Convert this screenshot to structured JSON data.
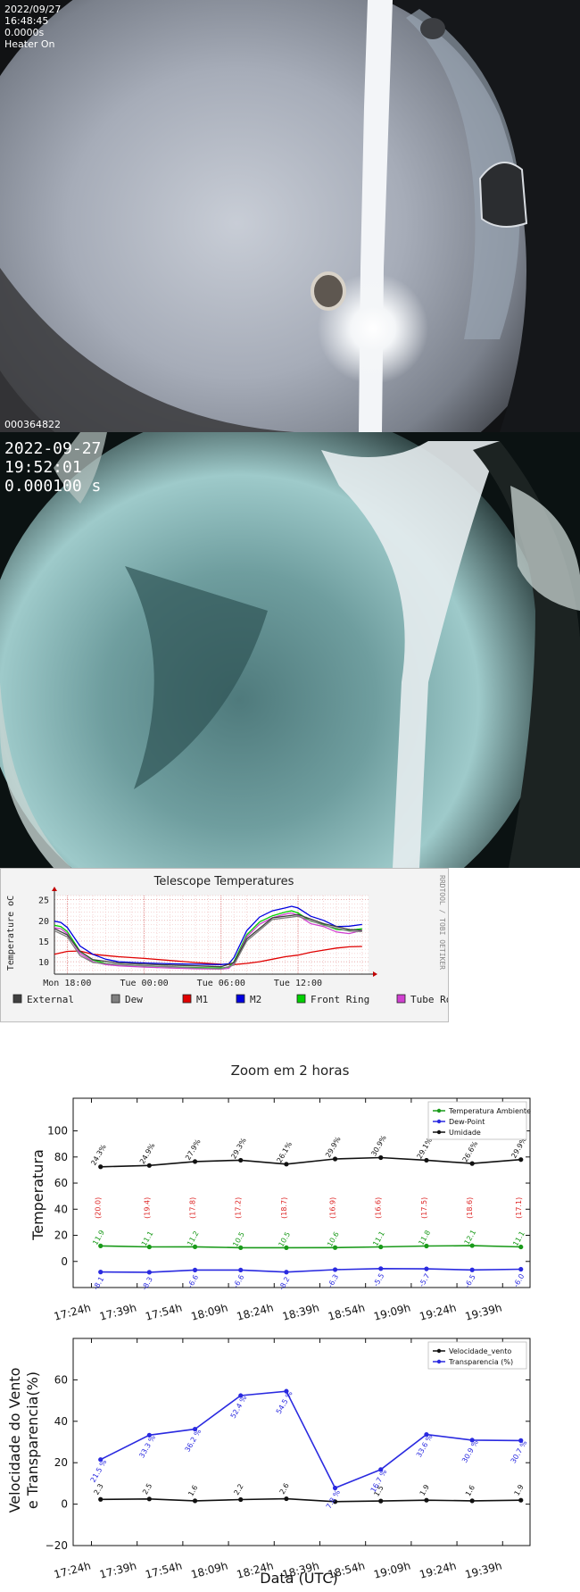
{
  "camera1": {
    "date": "2022/09/27",
    "time": "16:48:45",
    "exposure": "0.0000s",
    "heater": "Heater On",
    "frame_id": "000364822"
  },
  "camera2": {
    "date": "2022-09-27",
    "time": "19:52:01",
    "exposure": "0.000100 s"
  },
  "colors": {
    "external": "#404040",
    "dew": "#808080",
    "m1": "#e00000",
    "m2": "#0000e0",
    "front_ring": "#00d000",
    "tube_rod": "#d040d0",
    "temp_ambiente": "#1a9a1a",
    "dew_point": "#2a2ae0",
    "umidade": "#111111",
    "vento": "#111111",
    "transparencia": "#2a2ae0"
  },
  "chart_data": [
    {
      "type": "line",
      "title": "Telescope Temperatures",
      "ylabel": "Temperature oC",
      "watermark": "RRDTOOL / TOBI OETIKER",
      "x_ticks": [
        "Mon 18:00",
        "Tue 00:00",
        "Tue 06:00",
        "Tue 12:00"
      ],
      "x_tick_hours": [
        18,
        24,
        30,
        36
      ],
      "xlim_hours": [
        17,
        41.5
      ],
      "y_ticks": [
        "10",
        "15",
        "20",
        "25"
      ],
      "ylim": [
        7,
        26
      ],
      "legend": [
        "External",
        "Dew",
        "M1",
        "M2",
        "Front Ring",
        "Tube Rod"
      ],
      "series": [
        {
          "name": "M1",
          "color_key": "m1",
          "x": [
            17,
            18,
            19,
            20,
            22,
            24,
            26,
            28,
            30,
            31,
            32,
            33,
            34,
            35,
            36,
            37,
            38,
            39,
            40,
            41
          ],
          "y": [
            11.8,
            12.5,
            12.6,
            11.8,
            11.2,
            10.8,
            10.3,
            9.8,
            9.4,
            9.3,
            9.6,
            10.0,
            10.6,
            11.2,
            11.6,
            12.3,
            12.8,
            13.3,
            13.6,
            13.7
          ]
        },
        {
          "name": "M2",
          "color_key": "m2",
          "x": [
            17,
            17.5,
            18,
            19,
            20,
            21,
            22,
            24,
            26,
            28,
            30,
            30.6,
            31,
            32,
            33,
            34,
            35,
            35.5,
            36,
            37,
            38,
            39,
            40,
            41
          ],
          "y": [
            19.8,
            19.5,
            18.3,
            13.8,
            11.8,
            10.6,
            10.0,
            9.7,
            9.5,
            9.4,
            9.3,
            9.5,
            11.0,
            17.5,
            20.8,
            22.3,
            23.0,
            23.4,
            23.0,
            21.0,
            20.0,
            18.5,
            18.6,
            19.0
          ]
        },
        {
          "name": "Front Ring",
          "color_key": "front_ring",
          "x": [
            17,
            17.5,
            18,
            19,
            20,
            21,
            22,
            24,
            26,
            28,
            30,
            30.6,
            31,
            32,
            33,
            34,
            35,
            35.5,
            36,
            37,
            38,
            39,
            40,
            41
          ],
          "y": [
            18.8,
            18.5,
            17.3,
            12.5,
            10.4,
            9.6,
            9.3,
            9.0,
            8.8,
            8.6,
            8.5,
            8.7,
            10.0,
            16.5,
            19.6,
            21.1,
            22.0,
            22.3,
            21.8,
            19.8,
            19.0,
            17.8,
            17.6,
            18.0
          ]
        },
        {
          "name": "Tube Rod",
          "color_key": "tube_rod",
          "x": [
            17,
            17.5,
            18,
            19,
            20,
            21,
            22,
            24,
            26,
            28,
            30,
            30.6,
            31,
            32,
            33,
            34,
            35,
            35.5,
            36,
            37,
            38,
            39,
            40,
            41
          ],
          "y": [
            18.2,
            18.0,
            16.8,
            12.0,
            10.0,
            9.3,
            9.0,
            8.7,
            8.5,
            8.3,
            8.2,
            8.4,
            9.6,
            16.0,
            19.1,
            20.6,
            21.5,
            21.8,
            21.2,
            19.2,
            18.5,
            17.2,
            16.8,
            17.6
          ]
        },
        {
          "name": "Dew",
          "color_key": "dew",
          "x": [
            17,
            18,
            19,
            20,
            22,
            24,
            26,
            28,
            30,
            31,
            32,
            34,
            36,
            38,
            40,
            41
          ],
          "y": [
            17.5,
            16.0,
            11.5,
            9.8,
            9.3,
            9.0,
            8.8,
            8.5,
            8.3,
            9.2,
            15.0,
            20.2,
            21.0,
            18.8,
            17.4,
            17.3
          ]
        },
        {
          "name": "External",
          "color_key": "external",
          "x": [
            17,
            18,
            19,
            20,
            22,
            24,
            26,
            28,
            30,
            31,
            32,
            34,
            36,
            38,
            40,
            41
          ],
          "y": [
            18.0,
            16.5,
            12.5,
            10.5,
            9.7,
            9.4,
            9.2,
            9.0,
            8.8,
            9.8,
            15.5,
            20.6,
            21.4,
            19.2,
            17.8,
            17.6
          ]
        }
      ]
    },
    {
      "type": "line",
      "title": "Zoom em 2 horas",
      "ylabel": "Temperatura",
      "x_ticks": [
        "17:24h",
        "17:39h",
        "17:54h",
        "18:09h",
        "18:24h",
        "18:39h",
        "18:54h",
        "19:09h",
        "19:24h",
        "19:39h"
      ],
      "x_tick_minutes": [
        1044,
        1059,
        1074,
        1089,
        1104,
        1119,
        1134,
        1149,
        1164,
        1179
      ],
      "xlim_minutes": [
        1038,
        1188
      ],
      "y_ticks": [
        "0",
        "20",
        "40",
        "60",
        "80",
        "100"
      ],
      "ylim": [
        -20,
        125
      ],
      "legend": [
        "Temperatura Ambiente",
        "Dew-Point",
        "Umidade"
      ],
      "x_minutes": [
        1047,
        1063,
        1078,
        1093,
        1108,
        1124,
        1139,
        1154,
        1169,
        1185
      ],
      "series": [
        {
          "name": "Temperatura Ambiente",
          "color_key": "temp_ambiente",
          "values": [
            11.9,
            11.1,
            11.2,
            10.5,
            10.5,
            10.6,
            11.1,
            11.8,
            12.1,
            11.1
          ],
          "labels": [
            "11.9",
            "11.1",
            "11.2",
            "10.5",
            "10.5",
            "10.6",
            "11.1",
            "11.8",
            "12.1",
            "11.1"
          ]
        },
        {
          "name": "Dew-Point",
          "color_key": "dew_point",
          "values": [
            -8.1,
            -8.3,
            -6.6,
            -6.6,
            -8.2,
            -6.3,
            -5.5,
            -5.7,
            -6.5,
            -6.0
          ],
          "labels": [
            "-8.1",
            "-8.3",
            "-6.6",
            "-6.6",
            "-8.2",
            "-6.3",
            "-5.5",
            "-5.7",
            "-6.5",
            "-6.0"
          ]
        },
        {
          "name": "Umidade",
          "color_key": "umidade",
          "values": [
            72.5,
            73.5,
            76.5,
            77.5,
            74.5,
            78.5,
            79.5,
            77.5,
            75.0,
            78.0
          ],
          "labels": [
            "24.3%",
            "24.9%",
            "27.9%",
            "29.3%",
            "26.1%",
            "29.9%",
            "30.9%",
            "29.1%",
            "26.6%",
            "29.9%"
          ]
        }
      ],
      "red_labels": [
        "(20.0)",
        "(19.4)",
        "(17.8)",
        "(17.2)",
        "(18.7)",
        "(16.9)",
        "(16.6)",
        "(17.5)",
        "(18.6)",
        "(17.1)"
      ],
      "red_label_y": 41
    },
    {
      "type": "line",
      "title": "",
      "ylabel": "Velocidade do Vento\ne Transparencia(%)",
      "xlabel": "Data (UTC)",
      "x_ticks": [
        "17:24h",
        "17:39h",
        "17:54h",
        "18:09h",
        "18:24h",
        "18:39h",
        "18:54h",
        "19:09h",
        "19:24h",
        "19:39h"
      ],
      "x_tick_minutes": [
        1044,
        1059,
        1074,
        1089,
        1104,
        1119,
        1134,
        1149,
        1164,
        1179
      ],
      "xlim_minutes": [
        1038,
        1188
      ],
      "y_ticks": [
        "−20",
        "0",
        "20",
        "40",
        "60"
      ],
      "ylim": [
        -20,
        80
      ],
      "legend": [
        "Velocidade_vento",
        "Transparencia (%)"
      ],
      "x_minutes": [
        1047,
        1063,
        1078,
        1093,
        1108,
        1124,
        1139,
        1154,
        1169,
        1185
      ],
      "series": [
        {
          "name": "Velocidade_vento",
          "color_key": "vento",
          "values": [
            2.3,
            2.5,
            1.6,
            2.2,
            2.6,
            1.2,
            1.5,
            1.9,
            1.6,
            1.9
          ],
          "labels": [
            "2.3",
            "2.5",
            "1.6",
            "2.2",
            "2.6",
            "",
            "1.5",
            "1.9",
            "1.6",
            "1.9"
          ]
        },
        {
          "name": "Transparencia (%)",
          "color_key": "transparencia",
          "values": [
            21.5,
            33.3,
            36.2,
            52.4,
            54.5,
            7.8,
            16.7,
            33.6,
            30.9,
            30.7
          ],
          "labels": [
            "21.5 %",
            "33.3 %",
            "36.2 %",
            "52.4 %",
            "54.5 %",
            "7.8 %",
            "16.7 %",
            "33.6 %",
            "30.9 %",
            "30.7 %"
          ]
        }
      ]
    }
  ]
}
